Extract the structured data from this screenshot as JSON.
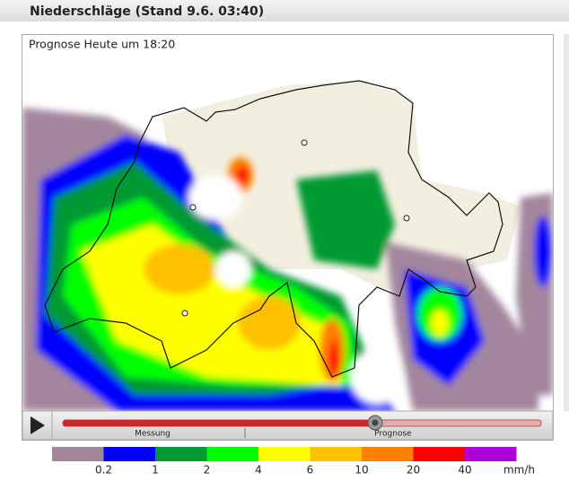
{
  "header": {
    "title": "Niederschläge (Stand 9.6. 03:40)"
  },
  "map": {
    "caption": "Prognose Heute um 18:20"
  },
  "player": {
    "measured_label": "Messung",
    "forecast_label": "Prognose"
  },
  "legend": {
    "colors": [
      "#a3869e",
      "#0000ff",
      "#009933",
      "#00ff00",
      "#ffff00",
      "#ffc000",
      "#ff8000",
      "#ff0000",
      "#b000d8"
    ],
    "labels": [
      "0.2",
      "1",
      "2",
      "4",
      "6",
      "10",
      "20",
      "40"
    ],
    "unit": "mm/h"
  }
}
